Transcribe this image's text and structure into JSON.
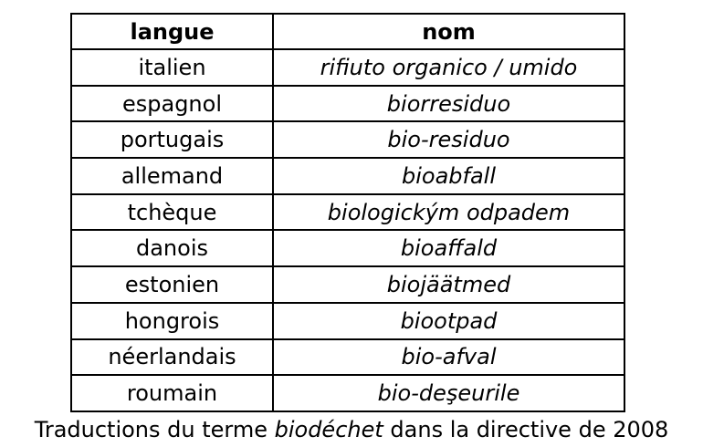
{
  "table": {
    "headers": [
      "langue",
      "nom"
    ],
    "rows": [
      {
        "langue": "italien",
        "nom": "rifiuto organico / umido"
      },
      {
        "langue": "espagnol",
        "nom": "biorresiduo"
      },
      {
        "langue": "portugais",
        "nom": "bio-residuo"
      },
      {
        "langue": "allemand",
        "nom": "bioabfall"
      },
      {
        "langue": "tchèque",
        "nom": "biologickým odpadem"
      },
      {
        "langue": "danois",
        "nom": "bioaffald"
      },
      {
        "langue": "estonien",
        "nom": "biojäätmed"
      },
      {
        "langue": "hongrois",
        "nom": "biootpad"
      },
      {
        "langue": "néerlandais",
        "nom": "bio-afval"
      },
      {
        "langue": "roumain",
        "nom": "bio-deşeurile"
      }
    ]
  },
  "caption": {
    "before": "Traductions du terme ",
    "term": "biodéchet",
    "after": " dans la directive de 2008"
  }
}
